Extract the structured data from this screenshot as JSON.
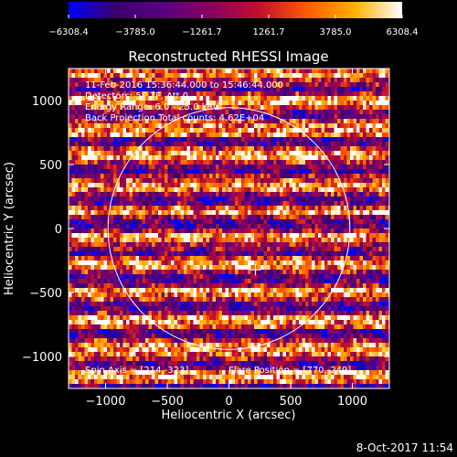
{
  "chart_data": {
    "type": "heatmap",
    "title": "Reconstructed RHESSI Image",
    "xlabel": "Heliocentric X (arcsec)",
    "ylabel": "Heliocentric Y (arcsec)",
    "xlim": [
      -1300,
      1300
    ],
    "ylim": [
      -1250,
      1250
    ],
    "x_ticks": [
      -1000,
      -500,
      0,
      500,
      1000
    ],
    "x_tick_labels": [
      "−1000",
      "−500",
      "0",
      "500",
      "1000"
    ],
    "y_ticks": [
      -1000,
      -500,
      0,
      500,
      1000
    ],
    "y_tick_labels": [
      "−1000",
      "−500",
      "0",
      "500",
      "1000"
    ],
    "colorbar": {
      "min": -6308.4,
      "max": 6308.4,
      "tick_values": [
        -6308.4,
        -3785.0,
        -1261.7,
        1261.7,
        3785.0,
        6308.4
      ],
      "tick_labels": [
        "−6308.4",
        "−3785.0",
        "−1261.7",
        "1261.7",
        "3785.0",
        "6308.4"
      ],
      "stops": [
        "#0000ff",
        "#3a006c",
        "#5a0080",
        "#8a0060",
        "#c0102a",
        "#ff5a00",
        "#ffb000",
        "#ffffff"
      ]
    },
    "annotations": [
      "11-Feb-2016 15:36:44.000 to 15:46:44.000",
      "Detectors: 5F 7F, Att 0",
      "Energy Range: 6.0 - 25.0 keV",
      "Back Projection    Total counts: 4.62E+04"
    ],
    "spin_axis_label": "Spin Axis = [214,-323]",
    "flare_position_label": "Flare Position = [770,-249]",
    "solar_limb": {
      "center": [
        0,
        0
      ],
      "radius_arcsec": 980
    },
    "marker": {
      "x": 214,
      "y": -323,
      "symbol": "+"
    },
    "grid": false
  },
  "footer": {
    "timestamp": "8-Oct-2017 11:54"
  }
}
